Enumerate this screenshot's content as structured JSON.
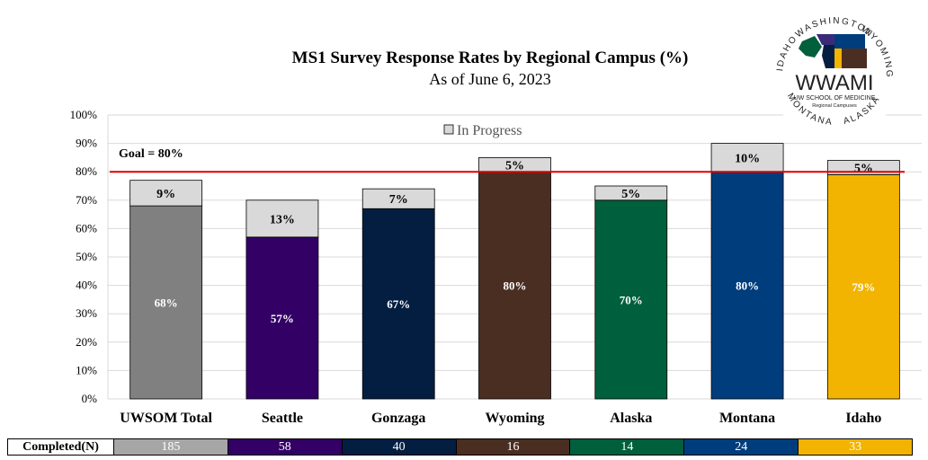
{
  "chart_data": {
    "type": "bar",
    "stacked": true,
    "title": "MS1 Survey Response Rates by Regional Campus (%)",
    "subtitle": "As of June 6, 2023",
    "categories": [
      "UWSOM Total",
      "Seattle",
      "Gonzaga",
      "Wyoming",
      "Alaska",
      "Montana",
      "Idaho"
    ],
    "series": [
      {
        "name": "",
        "values": [
          68,
          57,
          67,
          80,
          70,
          80,
          79
        ],
        "labels": [
          "68%",
          "57%",
          "67%",
          "80%",
          "70%",
          "80%",
          "79%"
        ]
      },
      {
        "name": "In Progress",
        "values": [
          9,
          13,
          7,
          5,
          5,
          10,
          5
        ],
        "labels": [
          "9%",
          "13%",
          "7%",
          "5%",
          "5%",
          "10%",
          "5%"
        ],
        "color": "#d9d9d9"
      }
    ],
    "bar_colors": [
      "#808080",
      "#330066",
      "#041e42",
      "#4b2e22",
      "#005f3c",
      "#003d7d",
      "#f2b400"
    ],
    "ylim": [
      0,
      100
    ],
    "yticks": [
      "0%",
      "10%",
      "20%",
      "30%",
      "40%",
      "50%",
      "60%",
      "70%",
      "80%",
      "90%",
      "100%"
    ],
    "goal": {
      "value": 80,
      "label": "Goal = 80%",
      "color": "#e00000"
    },
    "legend": {
      "position": "top",
      "label": "In Progress"
    },
    "grid": true
  },
  "table": {
    "header": "Completed(N)",
    "values": [
      "185",
      "58",
      "40",
      "16",
      "14",
      "24",
      "33"
    ],
    "colors": [
      "#a6a6a6",
      "#330066",
      "#041e42",
      "#4b2e22",
      "#005f3c",
      "#003d7d",
      "#f2b400"
    ],
    "text_colors": [
      "#ffffff",
      "#ffffff",
      "#ffffff",
      "#ffffff",
      "#ffffff",
      "#ffffff",
      "#ffffff"
    ]
  },
  "logo": {
    "text": "WWAMI",
    "subtext1": "UW SCHOOL OF MEDICINE",
    "subtext2": "Regional Campuses",
    "ring_top": "WASHINGTON",
    "ring_right": "WYOMING",
    "ring_bottom_right": "ALASKA",
    "ring_bottom_left": "MONTANA",
    "ring_left": "IDAHO"
  }
}
